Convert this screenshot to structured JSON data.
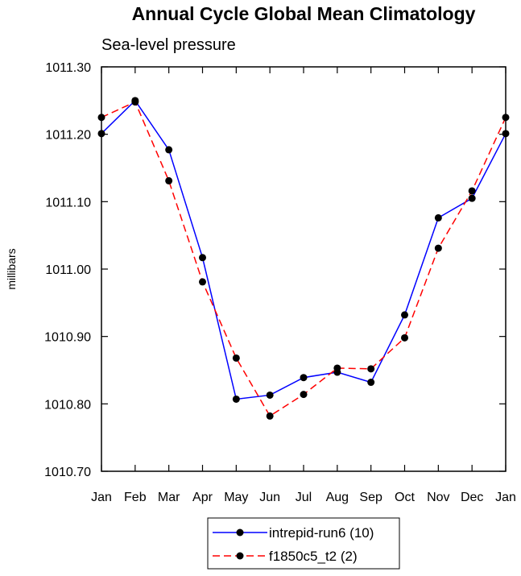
{
  "chart_data": {
    "type": "line",
    "title": "Annual Cycle Global Mean Climatology",
    "subtitle": "Sea-level pressure",
    "xlabel": "",
    "ylabel": "millibars",
    "ylim": [
      1010.7,
      1011.3
    ],
    "yticks": [
      "1010.70",
      "1010.80",
      "1010.90",
      "1011.00",
      "1011.10",
      "1011.20",
      "1011.30"
    ],
    "categories": [
      "Jan",
      "Feb",
      "Mar",
      "Apr",
      "May",
      "Jun",
      "Jul",
      "Aug",
      "Sep",
      "Oct",
      "Nov",
      "Dec",
      "Jan"
    ],
    "grid": false,
    "legend_position": "bottom-center",
    "series": [
      {
        "name": "intrepid-run6 (10)",
        "color": "#0000ff",
        "line_style": "solid",
        "values": [
          1011.201,
          1011.25,
          1011.177,
          1011.017,
          1010.807,
          1010.813,
          1010.839,
          1010.847,
          1010.832,
          1010.932,
          1011.076,
          1011.105,
          1011.201
        ]
      },
      {
        "name": "f1850c5_t2 (2)",
        "color": "#ff0000",
        "line_style": "dashed",
        "values": [
          1011.225,
          1011.248,
          1011.131,
          1010.981,
          1010.868,
          1010.782,
          1010.814,
          1010.853,
          1010.852,
          1010.898,
          1011.031,
          1011.116,
          1011.225
        ]
      }
    ]
  }
}
